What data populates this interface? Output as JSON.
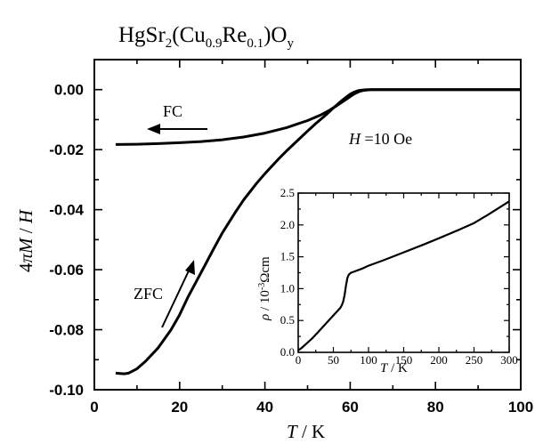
{
  "chart_data": [
    {
      "type": "line",
      "title_parts": {
        "formula_base": "HgSr",
        "sub_sr": "2",
        "open_paren": "(Cu",
        "sub_cu": "0.9",
        "re": "Re",
        "sub_re": "0.1",
        "close_o": ")O",
        "sub_y": "y"
      },
      "xlabel": {
        "symbol": "T",
        "unit": " / K"
      },
      "ylabel": {
        "prefix": "4",
        "pi": "π",
        "symbol": "M",
        "slash": " / ",
        "field": "H"
      },
      "xlim": [
        0,
        100
      ],
      "ylim": [
        -0.1,
        0.01
      ],
      "x_ticks": [
        "0",
        "20",
        "40",
        "60",
        "80",
        "100"
      ],
      "y_ticks": [
        "0.00",
        "-0.02",
        "-0.04",
        "-0.06",
        "-0.08",
        "-0.10"
      ],
      "series": [
        {
          "name": "FC",
          "x": [
            5,
            10,
            15,
            20,
            25,
            30,
            35,
            40,
            45,
            50,
            53,
            55,
            57,
            59,
            60,
            61,
            62,
            63,
            64,
            65,
            70,
            80,
            90,
            100
          ],
          "y": [
            -0.0183,
            -0.0182,
            -0.018,
            -0.0177,
            -0.0173,
            -0.0167,
            -0.0158,
            -0.0145,
            -0.0127,
            -0.0103,
            -0.0085,
            -0.007,
            -0.0052,
            -0.0033,
            -0.0023,
            -0.0014,
            -0.0007,
            -0.0003,
            -0.0001,
            0.0,
            0.0,
            0.0,
            0.0,
            0.0
          ]
        },
        {
          "name": "ZFC",
          "x": [
            5,
            7,
            8,
            10,
            12,
            15,
            18,
            20,
            22,
            25,
            28,
            30,
            33,
            35,
            38,
            40,
            43,
            45,
            48,
            50,
            52,
            54,
            56,
            58,
            60,
            61,
            62,
            63,
            64,
            65,
            70,
            80,
            90,
            100
          ],
          "y": [
            -0.0945,
            -0.0947,
            -0.0945,
            -0.093,
            -0.0905,
            -0.086,
            -0.08,
            -0.075,
            -0.069,
            -0.061,
            -0.053,
            -0.0478,
            -0.041,
            -0.0368,
            -0.0313,
            -0.028,
            -0.0234,
            -0.0205,
            -0.0165,
            -0.0138,
            -0.0112,
            -0.0088,
            -0.0062,
            -0.0037,
            -0.0015,
            -0.0008,
            -0.0003,
            -0.0001,
            0.0,
            0.0,
            0.0,
            0.0,
            0.0,
            0.0
          ]
        }
      ],
      "annotations": {
        "fc_label": "FC",
        "zfc_label": "ZFC",
        "field_symbol": "H",
        "field_value": " =10 Oe"
      }
    },
    {
      "type": "line",
      "xlabel": {
        "symbol": "T",
        "unit": " /  K"
      },
      "ylabel": {
        "symbol": "ρ",
        "unit": "  /  10",
        "exp": "-3",
        "ohm": "Ωcm"
      },
      "xlim": [
        0,
        300
      ],
      "ylim": [
        0,
        2.5
      ],
      "x_ticks": [
        "0",
        "50",
        "100",
        "150",
        "200",
        "250",
        "300"
      ],
      "y_ticks": [
        "0.0",
        "0.5",
        "1.0",
        "1.5",
        "2.0",
        "2.5"
      ],
      "series": [
        {
          "x": [
            0,
            5,
            10,
            20,
            30,
            40,
            50,
            55,
            60,
            62,
            64,
            66,
            68,
            70,
            72,
            75,
            80,
            90,
            100,
            120,
            150,
            180,
            200,
            230,
            250,
            270,
            290,
            300
          ],
          "y": [
            0.03,
            0.07,
            0.12,
            0.22,
            0.34,
            0.46,
            0.58,
            0.64,
            0.7,
            0.74,
            0.8,
            0.9,
            1.05,
            1.17,
            1.22,
            1.25,
            1.27,
            1.31,
            1.36,
            1.44,
            1.57,
            1.7,
            1.79,
            1.93,
            2.03,
            2.16,
            2.3,
            2.37
          ]
        }
      ]
    }
  ]
}
